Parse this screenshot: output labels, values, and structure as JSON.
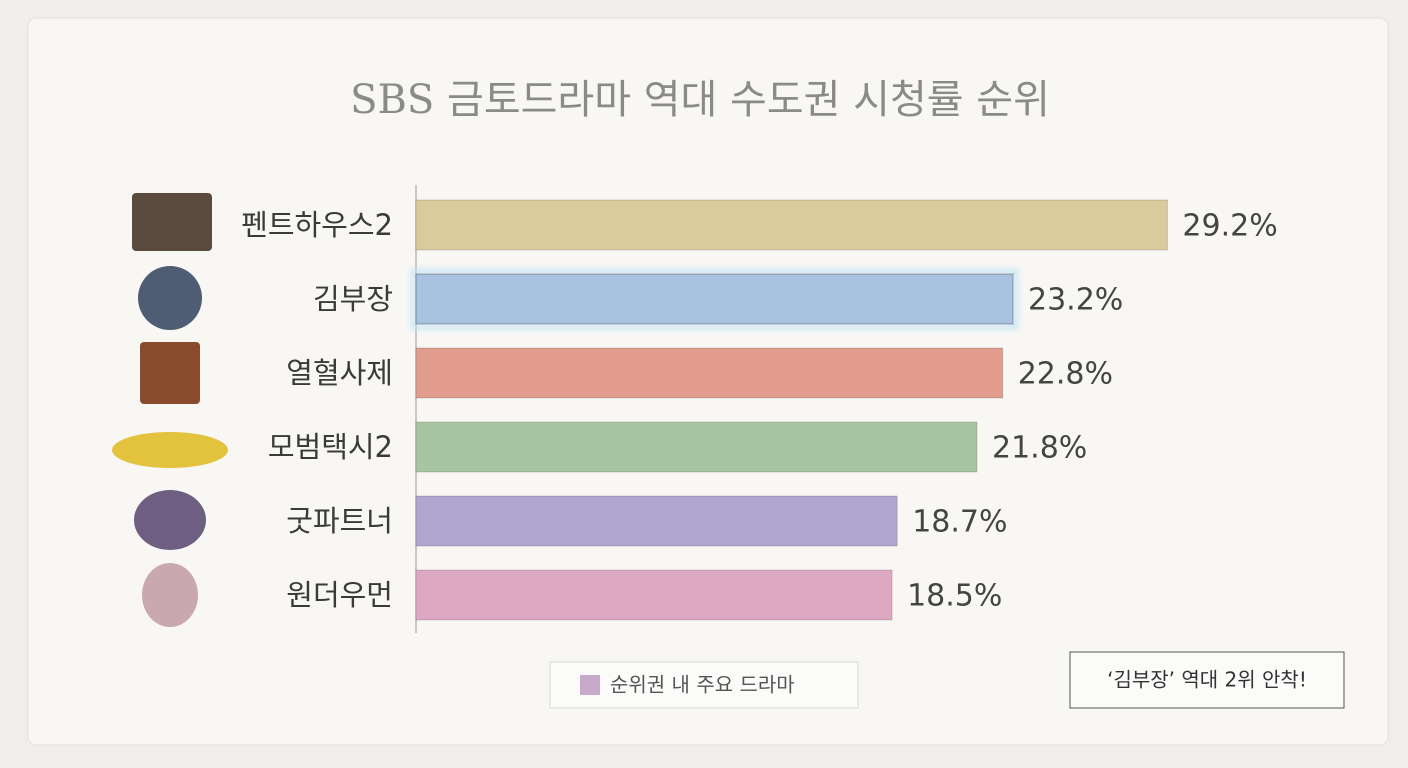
{
  "chart_data": {
    "type": "bar",
    "orientation": "horizontal",
    "title": "SBS 금토드라마 역대 수도권 시청률 순위",
    "categories": [
      "펜트하우스2",
      "김부장",
      "열혈사제",
      "모범택시2",
      "굿파트너",
      "원더우먼"
    ],
    "values": [
      29.2,
      23.2,
      22.8,
      21.8,
      18.7,
      18.5
    ],
    "value_labels": [
      "29.2%",
      "23.2%",
      "22.8%",
      "21.8%",
      "18.7%",
      "18.5%"
    ],
    "colors": [
      "#d9cb9c",
      "#a9c2e2",
      "#e19c8d",
      "#a6c6a2",
      "#afa5ce",
      "#dda8c2"
    ],
    "highlight": 1,
    "xlim": [
      0,
      30
    ],
    "legend": {
      "label": "순위권 내 주요 드라마",
      "color": "#c8a9cb"
    },
    "annotation": "‘김부장’ 역대 2위 안착!"
  }
}
